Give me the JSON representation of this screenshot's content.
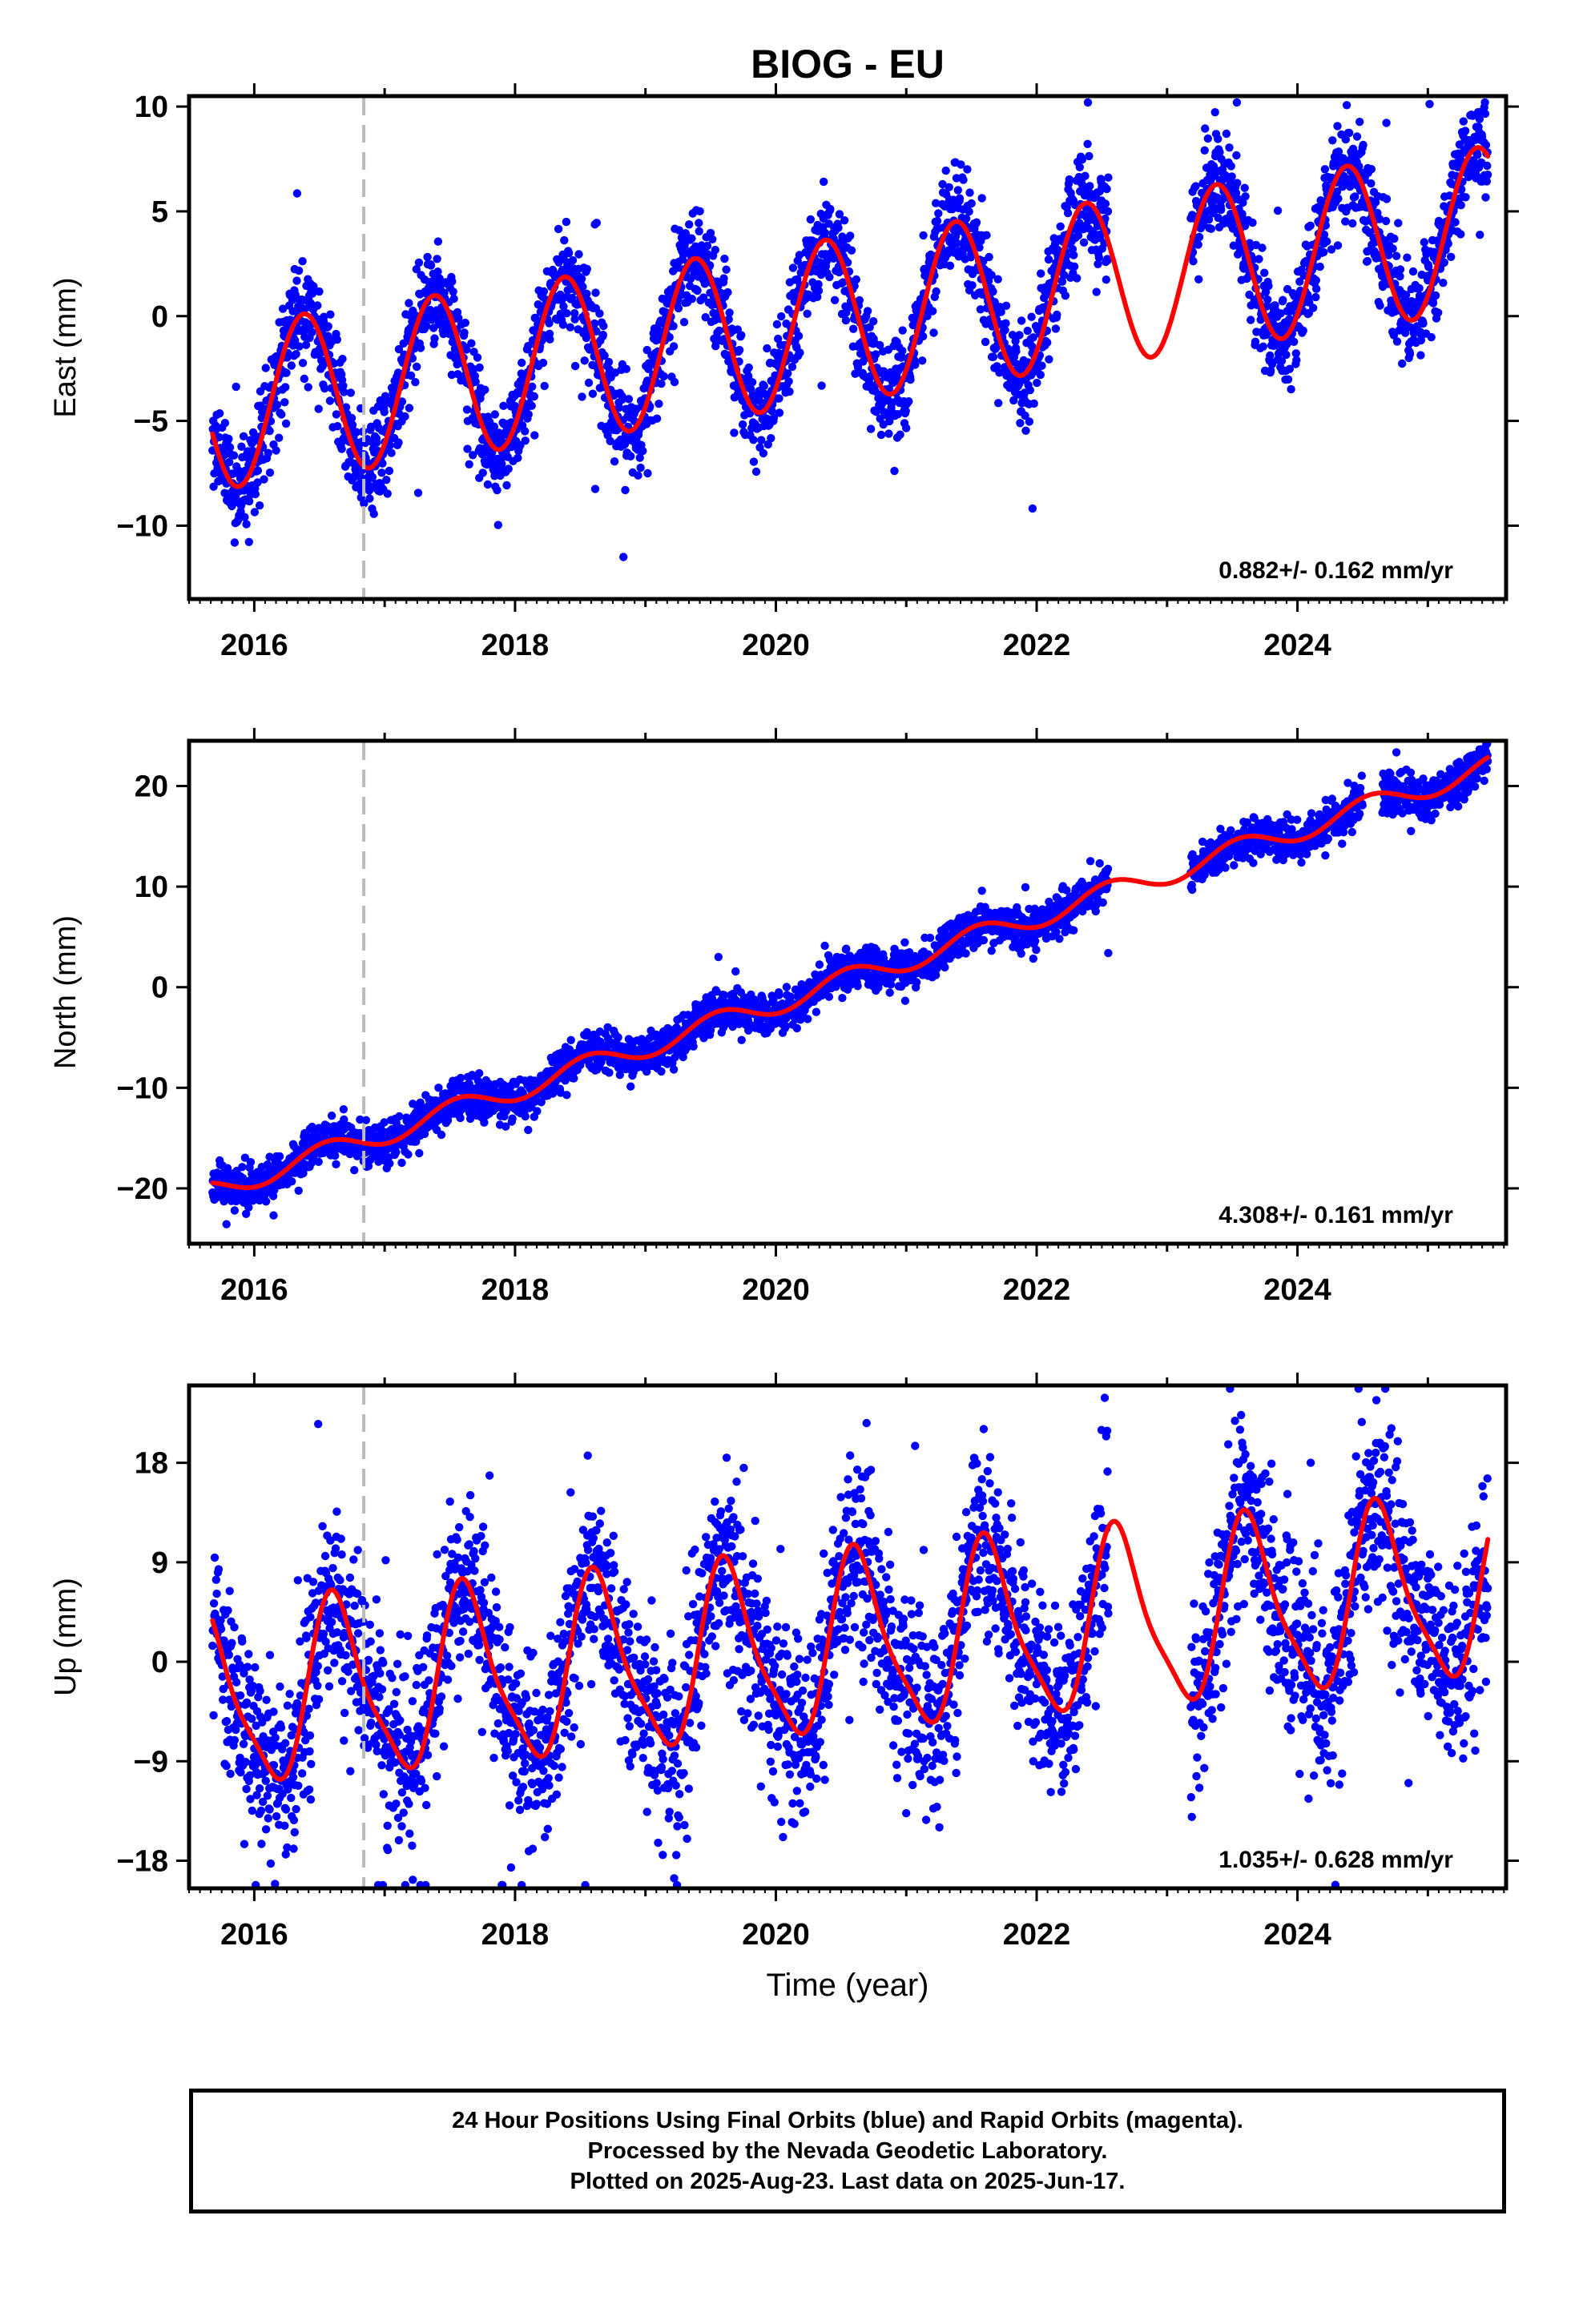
{
  "title": "BIOG - EU",
  "footer": {
    "line1": "24 Hour Positions Using Final Orbits (blue) and Rapid Orbits (magenta).",
    "line2": "Processed by the Nevada Geodetic Laboratory.",
    "line3": "Plotted on 2025-Aug-23. Last data on 2025-Jun-17."
  },
  "colors": {
    "points": "#0000ff",
    "fit": "#ff0000",
    "marker_line": "#bbbbbb",
    "frame": "#000000"
  },
  "chart_data": [
    {
      "type": "scatter",
      "component": "East",
      "ylabel": "East (mm)",
      "xlabel": "",
      "xlim": [
        2015.5,
        2025.6
      ],
      "ylim": [
        -13.5,
        10.5
      ],
      "yticks": [
        -10,
        -5,
        0,
        5,
        10
      ],
      "xticks": [
        2016,
        2018,
        2020,
        2022,
        2024
      ],
      "rate_label": "0.882+/- 0.162 mm/yr",
      "marker_line_x": 2016.84,
      "gaps": [
        [
          2022.55,
          2023.18
        ]
      ],
      "data_start": 2015.68,
      "data_end": 2025.46,
      "grid": false,
      "fit": {
        "intercept_at_2020": -0.6,
        "rate": 0.882,
        "annual_amp": 3.9,
        "annual_peak": 2016.38,
        "semiannual_amp": 0.0,
        "semiannual_peak": 2016.2,
        "scatter_sd": 1.2,
        "outlier_fraction": 0.02
      }
    },
    {
      "type": "scatter",
      "component": "North",
      "ylabel": "North (mm)",
      "xlabel": "",
      "xlim": [
        2015.5,
        2025.6
      ],
      "ylim": [
        -25.5,
        24.5
      ],
      "yticks": [
        -20,
        -10,
        0,
        10,
        20
      ],
      "xticks": [
        2016,
        2018,
        2020,
        2022,
        2024
      ],
      "rate_label": "4.308+/- 0.161 mm/yr",
      "marker_line_x": 2016.84,
      "gaps": [
        [
          2022.55,
          2023.18
        ],
        [
          2024.5,
          2024.65
        ]
      ],
      "data_start": 2015.68,
      "data_end": 2025.46,
      "grid": false,
      "fit": {
        "intercept_at_2020": -1.6,
        "rate": 4.308,
        "annual_amp": 1.1,
        "annual_peak": 2016.55,
        "semiannual_amp": 0.0,
        "semiannual_peak": 2016.2,
        "scatter_sd": 1.0,
        "outlier_fraction": 0.01
      }
    },
    {
      "type": "scatter",
      "component": "Up",
      "ylabel": "Up (mm)",
      "xlabel": "Time (year)",
      "xlim": [
        2015.5,
        2025.6
      ],
      "ylim": [
        -20.5,
        25
      ],
      "yticks": [
        -18,
        -9,
        0,
        9,
        18
      ],
      "xticks": [
        2016,
        2018,
        2020,
        2022,
        2024
      ],
      "rate_label": "1.035+/- 0.628 mm/yr",
      "marker_line_x": 2016.84,
      "gaps": [
        [
          2022.55,
          2023.18
        ]
      ],
      "data_start": 2015.68,
      "data_end": 2025.46,
      "grid": false,
      "fit": {
        "intercept_at_2020": 0.9,
        "rate": 1.035,
        "annual_amp": 7.8,
        "annual_peak": 2016.63,
        "semiannual_amp": 1.8,
        "semiannual_peak": 2016.55,
        "scatter_sd": 4.2,
        "outlier_fraction": 0.02
      }
    }
  ]
}
